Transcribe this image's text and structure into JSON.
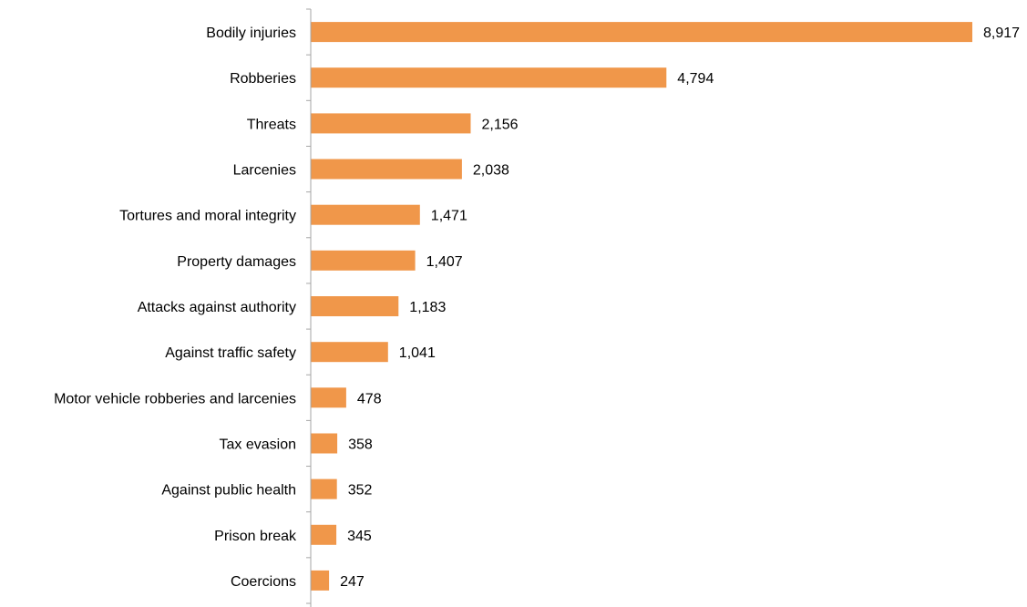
{
  "chart_data": {
    "type": "bar",
    "orientation": "horizontal",
    "categories": [
      "Bodily injuries",
      "Robberies",
      "Threats",
      "Larcenies",
      "Tortures and moral integrity",
      "Property damages",
      "Attacks against authority",
      "Against traffic safety",
      "Motor vehicle robberies and larcenies",
      "Tax evasion",
      "Against public health",
      "Prison break",
      "Coercions"
    ],
    "values": [
      8917,
      4794,
      2156,
      2038,
      1471,
      1407,
      1183,
      1041,
      478,
      358,
      352,
      345,
      247
    ],
    "value_labels": [
      "8,917",
      "4,794",
      "2,156",
      "2,038",
      "1,471",
      "1,407",
      "1,183",
      "1,041",
      "478",
      "358",
      "352",
      "345",
      "247"
    ],
    "title": "",
    "xlabel": "",
    "ylabel": "",
    "xlim": [
      0,
      8917
    ],
    "grid": false,
    "legend": "none",
    "bar_color": "#F0974A",
    "axis_color": "#A6A6A6"
  }
}
